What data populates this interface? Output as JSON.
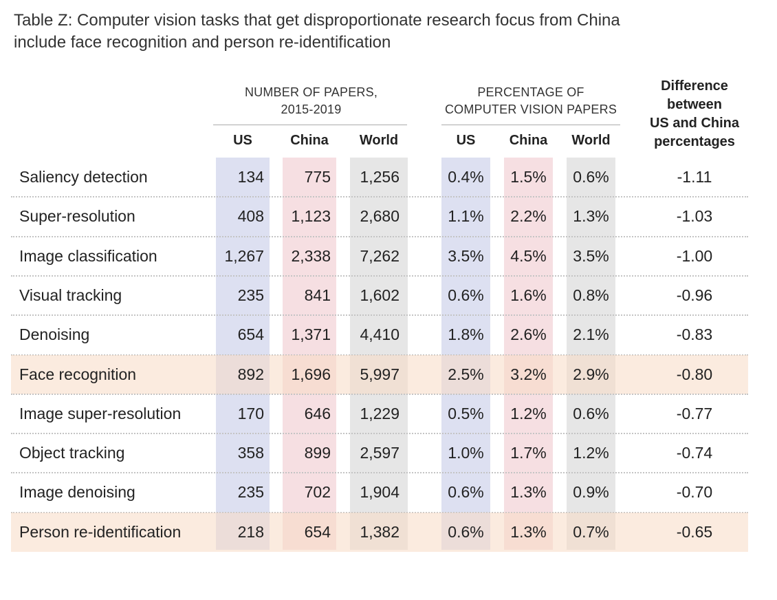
{
  "title_lines": [
    "Table Z: Computer vision tasks that get disproportionate research focus from China",
    "include face recognition and person re-identification"
  ],
  "groups": {
    "papers_line1": "NUMBER OF PAPERS,",
    "papers_line2": "2015-2019",
    "pct_line1": "PERCENTAGE OF",
    "pct_line2": "COMPUTER VISION PAPERS",
    "diff_line1": "Difference",
    "diff_line2": "between",
    "diff_line3": "US and China",
    "diff_line4": "percentages"
  },
  "columns": {
    "us": "US",
    "china": "China",
    "world": "World",
    "us_pct": "US",
    "china_pct": "China",
    "world_pct": "World"
  },
  "colors": {
    "us": "#dde0f1",
    "china": "#f6dfe2",
    "world": "#e6e6e6",
    "highlight": "#f8dac4"
  },
  "chart_data": {
    "type": "table",
    "title": "Table Z: Computer vision tasks that get disproportionate research focus from China include face recognition and person re-identification",
    "columns": [
      "US",
      "China",
      "World",
      "US",
      "China",
      "World",
      "Difference between US and China percentages"
    ],
    "rows": [
      {
        "task": "Saliency detection",
        "us": "134",
        "china": "775",
        "world": "1,256",
        "us_pct": "0.4%",
        "china_pct": "1.5%",
        "world_pct": "0.6%",
        "diff": "-1.11",
        "highlight": false
      },
      {
        "task": "Super-resolution",
        "us": "408",
        "china": "1,123",
        "world": "2,680",
        "us_pct": "1.1%",
        "china_pct": "2.2%",
        "world_pct": "1.3%",
        "diff": "-1.03",
        "highlight": false
      },
      {
        "task": "Image classification",
        "us": "1,267",
        "china": "2,338",
        "world": "7,262",
        "us_pct": "3.5%",
        "china_pct": "4.5%",
        "world_pct": "3.5%",
        "diff": "-1.00",
        "highlight": false
      },
      {
        "task": "Visual tracking",
        "us": "235",
        "china": "841",
        "world": "1,602",
        "us_pct": "0.6%",
        "china_pct": "1.6%",
        "world_pct": "0.8%",
        "diff": "-0.96",
        "highlight": false
      },
      {
        "task": "Denoising",
        "us": "654",
        "china": "1,371",
        "world": "4,410",
        "us_pct": "1.8%",
        "china_pct": "2.6%",
        "world_pct": "2.1%",
        "diff": "-0.83",
        "highlight": false
      },
      {
        "task": "Face recognition",
        "us": "892",
        "china": "1,696",
        "world": "5,997",
        "us_pct": "2.5%",
        "china_pct": "3.2%",
        "world_pct": "2.9%",
        "diff": "-0.80",
        "highlight": true
      },
      {
        "task": "Image super-resolution",
        "us": "170",
        "china": "646",
        "world": "1,229",
        "us_pct": "0.5%",
        "china_pct": "1.2%",
        "world_pct": "0.6%",
        "diff": "-0.77",
        "highlight": false
      },
      {
        "task": "Object tracking",
        "us": "358",
        "china": "899",
        "world": "2,597",
        "us_pct": "1.0%",
        "china_pct": "1.7%",
        "world_pct": "1.2%",
        "diff": "-0.74",
        "highlight": false
      },
      {
        "task": "Image denoising",
        "us": "235",
        "china": "702",
        "world": "1,904",
        "us_pct": "0.6%",
        "china_pct": "1.3%",
        "world_pct": "0.9%",
        "diff": "-0.70",
        "highlight": false
      },
      {
        "task": "Person re-identification",
        "us": "218",
        "china": "654",
        "world": "1,382",
        "us_pct": "0.6%",
        "china_pct": "1.3%",
        "world_pct": "0.7%",
        "diff": "-0.65",
        "highlight": true
      }
    ]
  }
}
